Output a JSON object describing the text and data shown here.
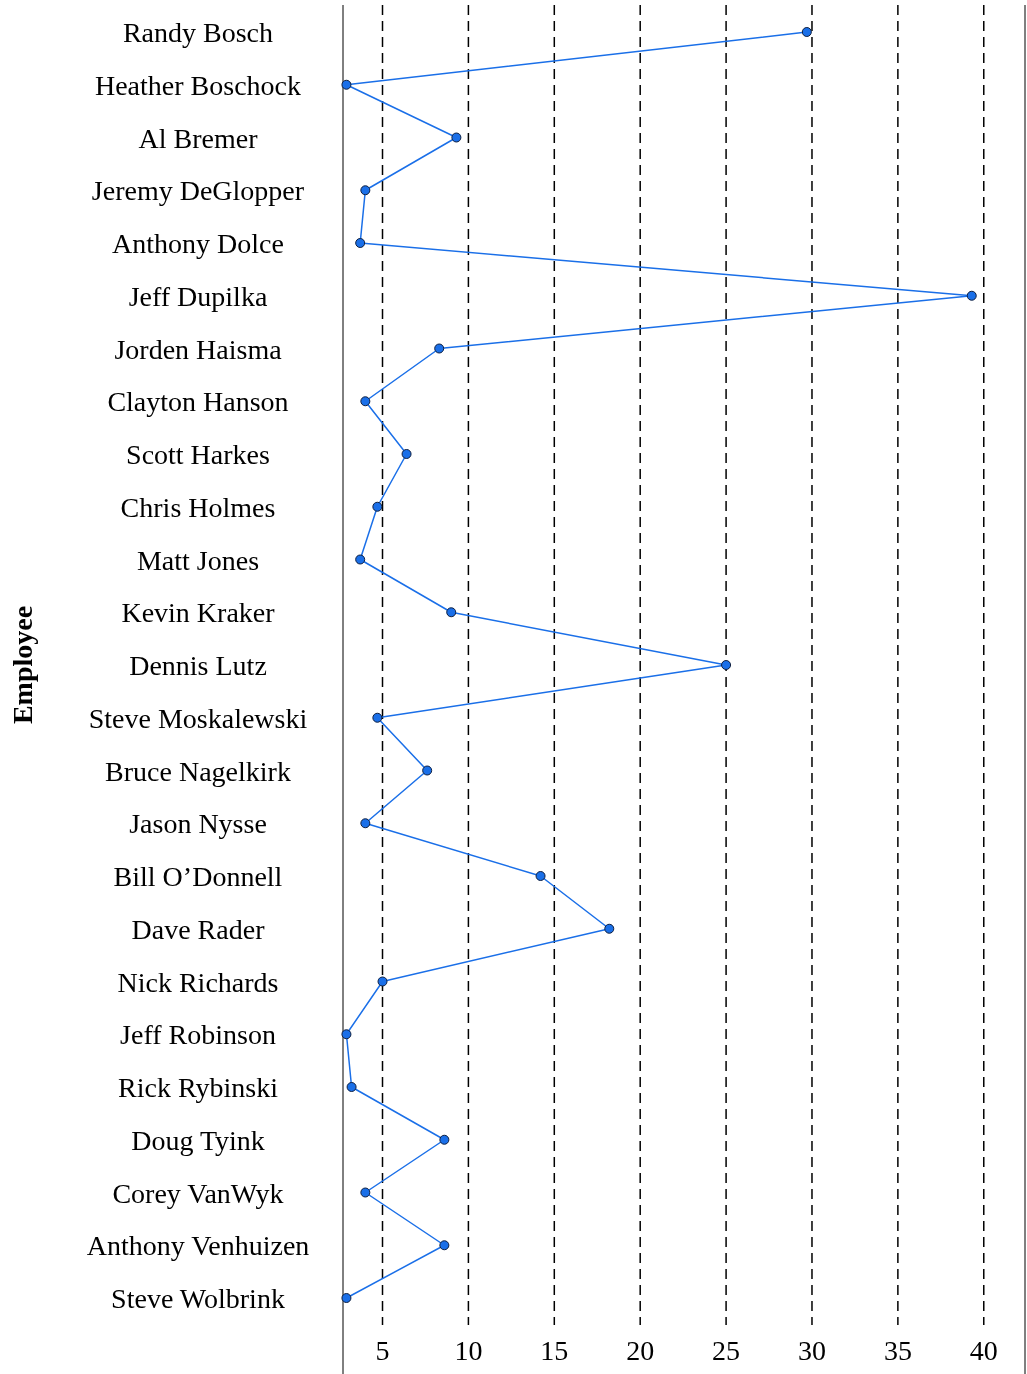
{
  "chart_data": {
    "type": "line",
    "orientation": "horizontal",
    "ylabel": "Employee",
    "categories": [
      "Randy Bosch",
      "Heather Boschock",
      "Al Bremer",
      "Jeremy DeGlopper",
      "Anthony Dolce",
      "Jeff Dupilka",
      "Jorden Haisma",
      "Clayton Hanson",
      "Scott Harkes",
      "Chris Holmes",
      "Matt Jones",
      "Kevin Kraker",
      "Dennis Lutz",
      "Steve Moskalewski",
      "Bruce Nagelkirk",
      "Jason Nysse",
      "Bill O’Donnell",
      "Dave Rader",
      "Nick Richards",
      "Jeff Robinson",
      "Rick Rybinski",
      "Doug Tyink",
      "Corey VanWyk",
      "Anthony Venhuizen",
      "Steve Wolbrink"
    ],
    "series": [
      {
        "color": "#1a6fe8",
        "values": [
          29.7,
          2.9,
          9.3,
          4.0,
          3.7,
          39.3,
          8.3,
          4.0,
          6.4,
          4.7,
          3.7,
          9.0,
          25,
          4.7,
          7.6,
          4.0,
          14.2,
          18.2,
          5,
          2.9,
          3.2,
          8.6,
          4.0,
          8.6,
          2.9
        ]
      }
    ],
    "xlim": [
      2.7,
      42.4
    ],
    "xticks": [
      5,
      10,
      15,
      20,
      25,
      30,
      35,
      40
    ],
    "grid": "x",
    "marker": "circle",
    "line_style": "solid"
  }
}
